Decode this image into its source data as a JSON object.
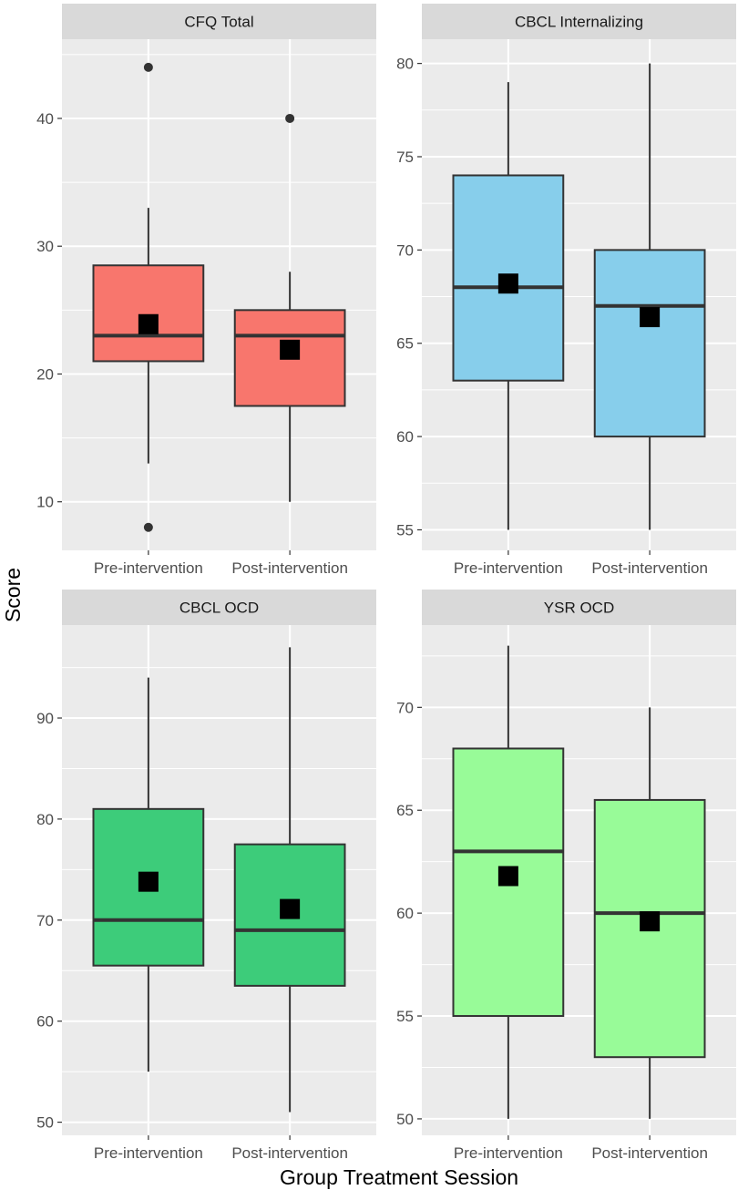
{
  "chart_data": {
    "type": "boxplot",
    "ylabel": "Score",
    "xlabel": "Group Treatment Session",
    "legend": "none",
    "categories": [
      "Pre-intervention",
      "Post-intervention"
    ],
    "panels": [
      {
        "title": "CFQ Total",
        "color": "#F8766D",
        "ylim": [
          6.2,
          46.2
        ],
        "yticks": [
          10,
          20,
          30,
          40
        ],
        "ytick_labels": [
          "10",
          "20",
          "30",
          "40"
        ],
        "boxes": [
          {
            "category": "Pre-intervention",
            "whisker_low": 13,
            "q1": 21,
            "median": 23,
            "q3": 28.5,
            "whisker_high": 33,
            "mean": 23.9,
            "outliers": [
              8,
              44
            ]
          },
          {
            "category": "Post-intervention",
            "whisker_low": 10,
            "q1": 17.5,
            "median": 23,
            "q3": 25,
            "whisker_high": 28,
            "mean": 21.9,
            "outliers": [
              40
            ]
          }
        ]
      },
      {
        "title": "CBCL Internalizing",
        "color": "#87CEEB",
        "ylim": [
          53.9,
          81.3
        ],
        "yticks": [
          55,
          60,
          65,
          70,
          75,
          80
        ],
        "ytick_labels": [
          "55",
          "60",
          "65",
          "70",
          "75",
          "80"
        ],
        "boxes": [
          {
            "category": "Pre-intervention",
            "whisker_low": 55,
            "q1": 63,
            "median": 68,
            "q3": 74,
            "whisker_high": 79,
            "mean": 68.2,
            "outliers": []
          },
          {
            "category": "Post-intervention",
            "whisker_low": 55,
            "q1": 60,
            "median": 67,
            "q3": 70,
            "whisker_high": 80,
            "mean": 66.4,
            "outliers": []
          }
        ]
      },
      {
        "title": "CBCL OCD",
        "color": "#3DCC7A",
        "ylim": [
          48.7,
          99.2
        ],
        "yticks": [
          50,
          60,
          70,
          80,
          90
        ],
        "ytick_labels": [
          "50",
          "60",
          "70",
          "80",
          "90"
        ],
        "boxes": [
          {
            "category": "Pre-intervention",
            "whisker_low": 55,
            "q1": 65.5,
            "median": 70,
            "q3": 81,
            "whisker_high": 94,
            "mean": 73.8,
            "outliers": []
          },
          {
            "category": "Post-intervention",
            "whisker_low": 51,
            "q1": 63.5,
            "median": 69,
            "q3": 77.5,
            "whisker_high": 97,
            "mean": 71.1,
            "outliers": []
          }
        ]
      },
      {
        "title": "YSR OCD",
        "color": "#98FB98",
        "ylim": [
          49.2,
          74.0
        ],
        "yticks": [
          50,
          55,
          60,
          65,
          70
        ],
        "ytick_labels": [
          "50",
          "55",
          "60",
          "65",
          "70"
        ],
        "boxes": [
          {
            "category": "Pre-intervention",
            "whisker_low": 50,
            "q1": 55,
            "median": 63,
            "q3": 68,
            "whisker_high": 73,
            "mean": 61.8,
            "outliers": []
          },
          {
            "category": "Post-intervention",
            "whisker_low": 50,
            "q1": 53,
            "median": 60,
            "q3": 65.5,
            "whisker_high": 70,
            "mean": 59.6,
            "outliers": []
          }
        ]
      }
    ]
  }
}
